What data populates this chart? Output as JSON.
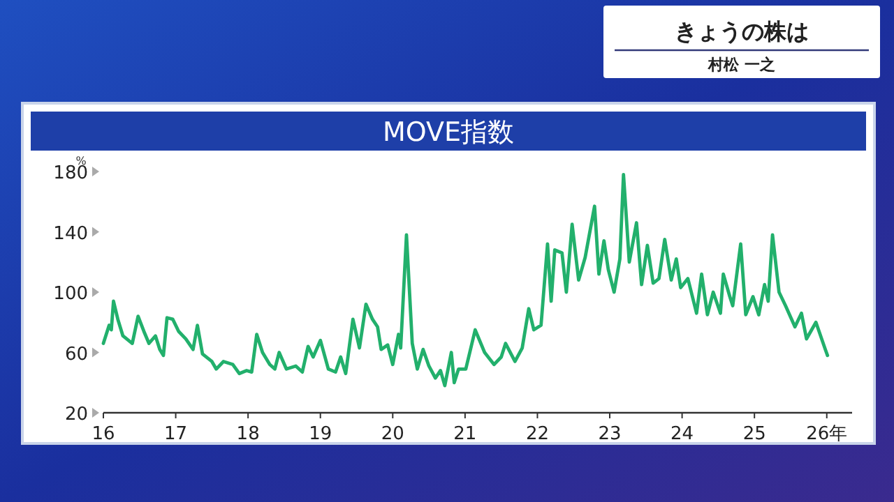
{
  "chart_data": {
    "type": "line",
    "title": "MOVE指数",
    "ylabel": "%",
    "annotations": [
      "きょうの株は",
      "村松 一之"
    ],
    "xlim": [
      16,
      26.35
    ],
    "xticks": [
      16,
      17,
      18,
      19,
      20,
      21,
      22,
      23,
      24,
      25,
      {
        "value": 26,
        "label": "26年"
      }
    ],
    "ylim": [
      20,
      180
    ],
    "yticks": [
      20,
      60,
      100,
      140,
      180
    ],
    "grid": false,
    "marker": "none",
    "line_style": "solid",
    "series": [
      {
        "color": "#22b06c",
        "x": [
          16.0,
          16.08,
          16.11,
          16.14,
          16.2,
          16.27,
          16.4,
          16.48,
          16.56,
          16.63,
          16.72,
          16.78,
          16.83,
          16.88,
          16.96,
          17.04,
          17.14,
          17.24,
          17.3,
          17.37,
          17.5,
          17.56,
          17.66,
          17.79,
          17.88,
          17.98,
          18.05,
          18.12,
          18.2,
          18.3,
          18.37,
          18.43,
          18.53,
          18.66,
          18.75,
          18.83,
          18.9,
          19.0,
          19.11,
          19.21,
          19.28,
          19.35,
          19.45,
          19.54,
          19.63,
          19.72,
          19.79,
          19.84,
          19.93,
          20.0,
          20.08,
          20.11,
          20.19,
          20.27,
          20.34,
          20.42,
          20.5,
          20.59,
          20.66,
          20.72,
          20.81,
          20.85,
          20.91,
          21.01,
          21.14,
          21.27,
          21.4,
          21.5,
          21.56,
          21.69,
          21.79,
          21.88,
          21.95,
          22.05,
          22.14,
          22.19,
          22.24,
          22.34,
          22.4,
          22.48,
          22.57,
          22.66,
          22.79,
          22.85,
          22.92,
          22.98,
          23.06,
          23.14,
          23.19,
          23.27,
          23.37,
          23.44,
          23.52,
          23.6,
          23.68,
          23.76,
          23.85,
          23.92,
          23.98,
          24.08,
          24.2,
          24.27,
          24.35,
          24.43,
          24.53,
          24.57,
          24.66,
          24.7,
          24.81,
          24.88,
          24.98,
          25.06,
          25.14,
          25.19,
          25.25,
          25.34,
          25.43,
          25.56,
          25.65,
          25.72,
          25.85,
          25.98,
          26.01
        ],
        "values": [
          66,
          78,
          75,
          94,
          82,
          71,
          66,
          84,
          74,
          66,
          71,
          62,
          58,
          83,
          82,
          74,
          69,
          62,
          78,
          59,
          54,
          49,
          54,
          52,
          46,
          48,
          47,
          72,
          60,
          52,
          49,
          60,
          49,
          51,
          47,
          64,
          57,
          68,
          49,
          47,
          57,
          46,
          82,
          63,
          92,
          82,
          77,
          62,
          65,
          52,
          72,
          63,
          138,
          66,
          49,
          62,
          51,
          43,
          48,
          38,
          60,
          40,
          49,
          49,
          75,
          60,
          52,
          57,
          66,
          54,
          63,
          89,
          75,
          78,
          132,
          94,
          128,
          126,
          100,
          145,
          108,
          123,
          157,
          112,
          134,
          115,
          100,
          122,
          178,
          120,
          146,
          105,
          131,
          106,
          109,
          135,
          108,
          122,
          103,
          109,
          86,
          112,
          85,
          100,
          86,
          112,
          97,
          91,
          132,
          85,
          97,
          85,
          105,
          94,
          138,
          100,
          91,
          77,
          86,
          69,
          80,
          62,
          58
        ]
      }
    ]
  }
}
